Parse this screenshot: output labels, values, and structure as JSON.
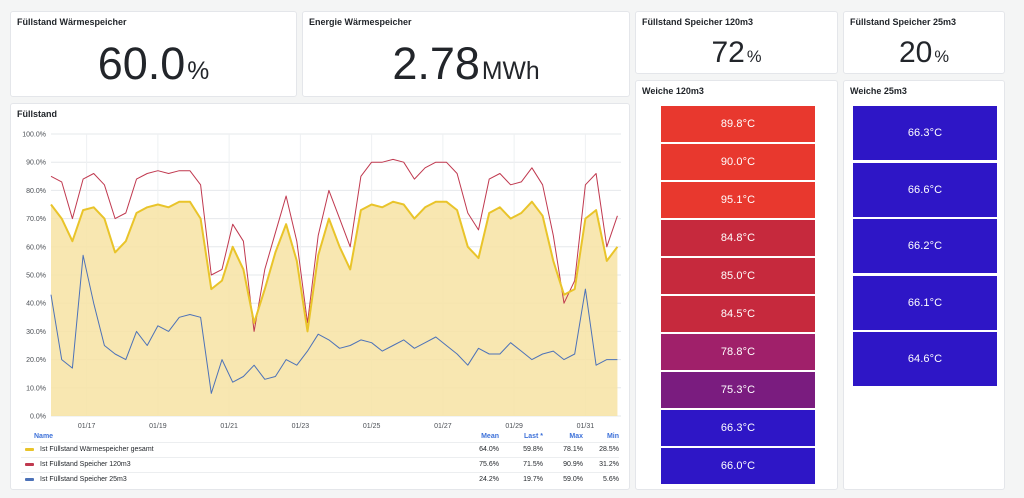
{
  "panels": {
    "fill_total": {
      "title": "Füllstand Wärmespeicher",
      "value": "60.0",
      "unit": "%"
    },
    "energy": {
      "title": "Energie Wärmespeicher",
      "value": "2.78",
      "unit": "MWh"
    },
    "fill_120": {
      "title": "Füllstand Speicher 120m3",
      "value": "72",
      "unit": "%"
    },
    "fill_25": {
      "title": "Füllstand Speicher 25m3",
      "value": "20",
      "unit": "%"
    },
    "weiche_120": {
      "title": "Weiche 120m3",
      "cells": [
        {
          "label": "89.8°C",
          "color": "#e8382e"
        },
        {
          "label": "90.0°C",
          "color": "#e8382e"
        },
        {
          "label": "95.1°C",
          "color": "#e8382e"
        },
        {
          "label": "84.8°C",
          "color": "#c6293d"
        },
        {
          "label": "85.0°C",
          "color": "#c6293d"
        },
        {
          "label": "84.5°C",
          "color": "#c6293d"
        },
        {
          "label": "78.8°C",
          "color": "#a0206a"
        },
        {
          "label": "75.3°C",
          "color": "#7a1c7f"
        },
        {
          "label": "66.3°C",
          "color": "#2e16c6"
        },
        {
          "label": "66.0°C",
          "color": "#2e16c6"
        }
      ]
    },
    "weiche_25": {
      "title": "Weiche 25m3",
      "cells": [
        {
          "label": "66.3°C",
          "color": "#2e16c6"
        },
        {
          "label": "66.6°C",
          "color": "#2e16c6"
        },
        {
          "label": "66.2°C",
          "color": "#2e16c6"
        },
        {
          "label": "66.1°C",
          "color": "#2e16c6"
        },
        {
          "label": "64.6°C",
          "color": "#2e16c6"
        }
      ]
    },
    "chart": {
      "title": "Füllstand"
    }
  },
  "legend": {
    "headers": {
      "name": "Name",
      "mean": "Mean",
      "last": "Last *",
      "max": "Max",
      "min": "Min"
    },
    "rows": [
      {
        "name": "Ist Füllstand Wärmespeicher gesamt",
        "color": "#e9c42a",
        "mean": "64.0%",
        "last": "59.8%",
        "max": "78.1%",
        "min": "28.5%"
      },
      {
        "name": "Ist Füllstand Speicher 120m3",
        "color": "#c0394f",
        "mean": "75.6%",
        "last": "71.5%",
        "max": "90.9%",
        "min": "31.2%"
      },
      {
        "name": "Ist Füllstand Speicher 25m3",
        "color": "#4d72b8",
        "mean": "24.2%",
        "last": "19.7%",
        "max": "59.0%",
        "min": "5.6%"
      }
    ]
  },
  "chart_data": {
    "type": "area",
    "title": "Füllstand",
    "xlabel": "",
    "ylabel": "",
    "ylim": [
      0,
      100
    ],
    "yticks": [
      "0.0%",
      "10.0%",
      "20.0%",
      "30.0%",
      "40.0%",
      "50.0%",
      "60.0%",
      "70.0%",
      "80.0%",
      "90.0%",
      "100.0%"
    ],
    "xticks": [
      "01/17",
      "01/19",
      "01/21",
      "01/23",
      "01/25",
      "01/27",
      "01/29",
      "01/31"
    ],
    "x": [
      16.0,
      16.3,
      16.6,
      16.9,
      17.2,
      17.5,
      17.8,
      18.1,
      18.4,
      18.7,
      19.0,
      19.3,
      19.6,
      19.9,
      20.2,
      20.5,
      20.8,
      21.1,
      21.4,
      21.7,
      22.0,
      22.3,
      22.6,
      22.9,
      23.2,
      23.5,
      23.8,
      24.1,
      24.4,
      24.7,
      25.0,
      25.3,
      25.6,
      25.9,
      26.2,
      26.5,
      26.8,
      27.1,
      27.4,
      27.7,
      28.0,
      28.3,
      28.6,
      28.9,
      29.2,
      29.5,
      29.8,
      30.1,
      30.4,
      30.7,
      31.0,
      31.3,
      31.6,
      31.9
    ],
    "series": [
      {
        "name": "Ist Füllstand Wärmespeicher gesamt",
        "color": "#e9c42a",
        "values": [
          75,
          70,
          62,
          73,
          74,
          70,
          58,
          62,
          72,
          74,
          75,
          74,
          76,
          76,
          70,
          45,
          48,
          60,
          52,
          33,
          45,
          58,
          68,
          55,
          30,
          57,
          70,
          60,
          52,
          73,
          75,
          74,
          76,
          75,
          70,
          74,
          76,
          76,
          73,
          60,
          56,
          72,
          74,
          70,
          72,
          76,
          71,
          55,
          43,
          45,
          70,
          73,
          55,
          60
        ]
      },
      {
        "name": "Ist Füllstand Speicher 120m3",
        "color": "#c0394f",
        "values": [
          85,
          83,
          70,
          84,
          86,
          82,
          70,
          72,
          84,
          86,
          87,
          86,
          87,
          87,
          82,
          50,
          52,
          68,
          62,
          30,
          52,
          65,
          78,
          62,
          33,
          64,
          80,
          70,
          60,
          85,
          90,
          90,
          91,
          90,
          84,
          88,
          90,
          90,
          86,
          72,
          66,
          84,
          86,
          82,
          83,
          88,
          82,
          64,
          40,
          48,
          82,
          86,
          60,
          71
        ]
      },
      {
        "name": "Ist Füllstand Speicher 25m3",
        "color": "#4d72b8",
        "values": [
          43,
          20,
          17,
          57,
          40,
          25,
          22,
          20,
          30,
          25,
          32,
          30,
          35,
          36,
          35,
          8,
          20,
          12,
          14,
          18,
          13,
          14,
          20,
          18,
          23,
          29,
          27,
          24,
          25,
          27,
          26,
          23,
          25,
          27,
          24,
          26,
          28,
          25,
          22,
          18,
          24,
          22,
          22,
          26,
          23,
          20,
          22,
          23,
          20,
          22,
          45,
          18,
          20,
          20
        ]
      }
    ]
  }
}
